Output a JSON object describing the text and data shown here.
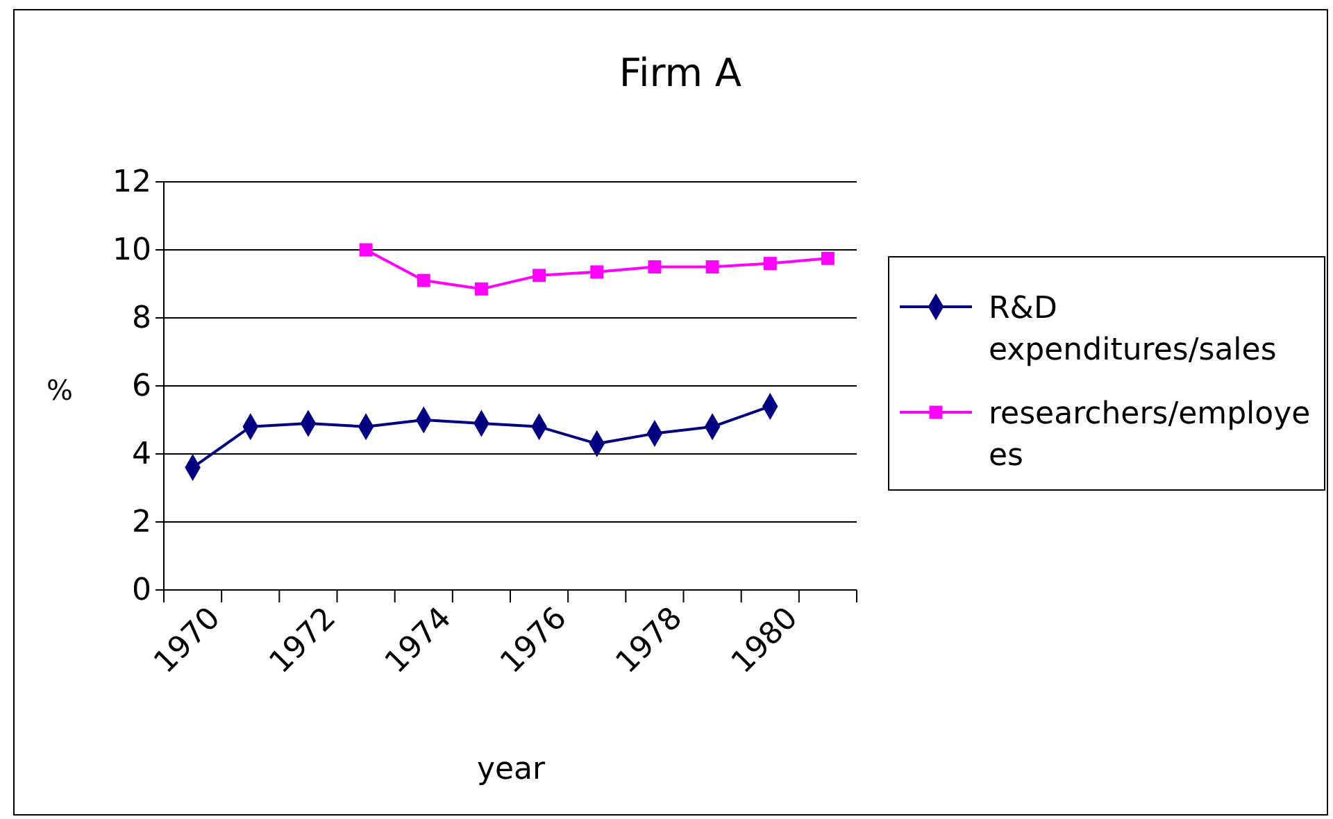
{
  "chart_data": {
    "type": "line",
    "title": "Firm A",
    "xlabel": "year",
    "ylabel": "%",
    "categories": [
      "1970",
      null,
      "1972",
      null,
      "1974",
      null,
      "1976",
      null,
      "1978",
      null,
      "1980",
      null
    ],
    "series": [
      {
        "name": "R&D expenditures/sales",
        "color": "#000080",
        "marker": "diamond",
        "values": [
          3.6,
          4.8,
          4.9,
          4.8,
          5.0,
          4.9,
          4.8,
          4.3,
          4.6,
          4.8,
          5.4,
          null
        ]
      },
      {
        "name": "researchers/employees",
        "color": "#ff00ff",
        "marker": "square",
        "values": [
          null,
          null,
          null,
          10.0,
          9.1,
          8.85,
          9.25,
          9.35,
          9.5,
          9.5,
          9.6,
          9.75
        ]
      }
    ],
    "ylim": [
      0,
      12
    ],
    "yticks": [
      0,
      2,
      4,
      6,
      8,
      10,
      12
    ],
    "grid": "y",
    "legend": "right",
    "line_style": "solid"
  }
}
